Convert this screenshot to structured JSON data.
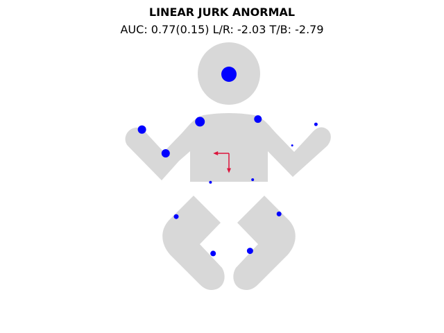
{
  "chart_data": {
    "type": "scatter",
    "title": "LINEAR JURK ANORMAL",
    "subtitle": "AUC: 0.77(0.15) L/R: -2.03 T/B: -2.79",
    "body_color": "#d8d8d8",
    "marker_color": "#0000ff",
    "arrow_color": "#dc143c",
    "auc": 0.77,
    "auc_sd": 0.15,
    "lr": -2.03,
    "tb": -2.79,
    "points": [
      {
        "part": "head",
        "x": 0.0,
        "y": 3.5,
        "size": 11
      },
      {
        "part": "left-shoulder",
        "x": -1.1,
        "y": 1.7,
        "size": 7
      },
      {
        "part": "right-shoulder",
        "x": 1.1,
        "y": 1.8,
        "size": 5.5
      },
      {
        "part": "left-hand",
        "x": -3.3,
        "y": 1.4,
        "size": 6
      },
      {
        "part": "left-elbow",
        "x": -2.4,
        "y": 0.5,
        "size": 6
      },
      {
        "part": "right-hand",
        "x": 3.3,
        "y": 1.6,
        "size": 2.5
      },
      {
        "part": "right-elbow",
        "x": 2.4,
        "y": 0.8,
        "size": 1.5
      },
      {
        "part": "left-hip",
        "x": -0.7,
        "y": -0.6,
        "size": 2
      },
      {
        "part": "right-hip",
        "x": 0.9,
        "y": -0.5,
        "size": 2
      },
      {
        "part": "left-knee",
        "x": -2.0,
        "y": -1.9,
        "size": 3.5
      },
      {
        "part": "right-knee",
        "x": 1.9,
        "y": -1.8,
        "size": 3.5
      },
      {
        "part": "left-foot",
        "x": -0.6,
        "y": -3.3,
        "size": 4
      },
      {
        "part": "right-foot",
        "x": 0.8,
        "y": -3.2,
        "size": 4.5
      }
    ],
    "arrow": {
      "origin": [
        0.0,
        0.5
      ],
      "dx": -0.6,
      "dy": -0.75
    }
  }
}
